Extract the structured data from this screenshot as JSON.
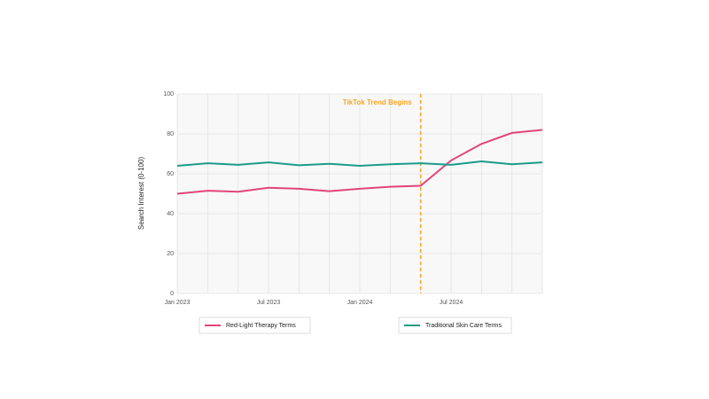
{
  "chart_data": {
    "type": "line",
    "x": [
      "2023-01",
      "2023-03",
      "2023-05",
      "2023-07",
      "2023-09",
      "2023-11",
      "2024-01",
      "2024-03",
      "2024-05",
      "2024-07",
      "2024-09",
      "2024-11",
      "2025-01"
    ],
    "series": [
      {
        "name": "Red-Light Therapy Terms",
        "color": "#e0457b",
        "values": [
          50,
          51.5,
          51,
          53,
          52.5,
          51.3,
          52.5,
          53.5,
          54,
          66.7,
          75,
          80.5,
          82
        ]
      },
      {
        "name": "Traditional Skin Care Terms",
        "color": "#1a9c8a",
        "values": [
          64,
          65.3,
          64.5,
          65.7,
          64.3,
          65,
          64,
          64.8,
          65.3,
          64.5,
          66.2,
          64.8,
          65.7
        ]
      }
    ],
    "y_label": "Search Interest (0-100)",
    "xlim": [
      "2023-01",
      "2025-01"
    ],
    "xticks": [
      {
        "value": "2023-01",
        "label": "Jan 2023"
      },
      {
        "value": "2023-07",
        "label": "Jul 2023"
      },
      {
        "value": "2024-01",
        "label": "Jan 2024"
      },
      {
        "value": "2024-07",
        "label": "Jul 2024"
      }
    ],
    "ylim": [
      0,
      100
    ],
    "yticks": [
      0,
      20,
      40,
      60,
      80,
      100
    ],
    "grid": true,
    "annotation": {
      "x": "2024-05",
      "text": "TikTok Trend Begins",
      "color": "#f5a623"
    },
    "legend": "bottom"
  }
}
